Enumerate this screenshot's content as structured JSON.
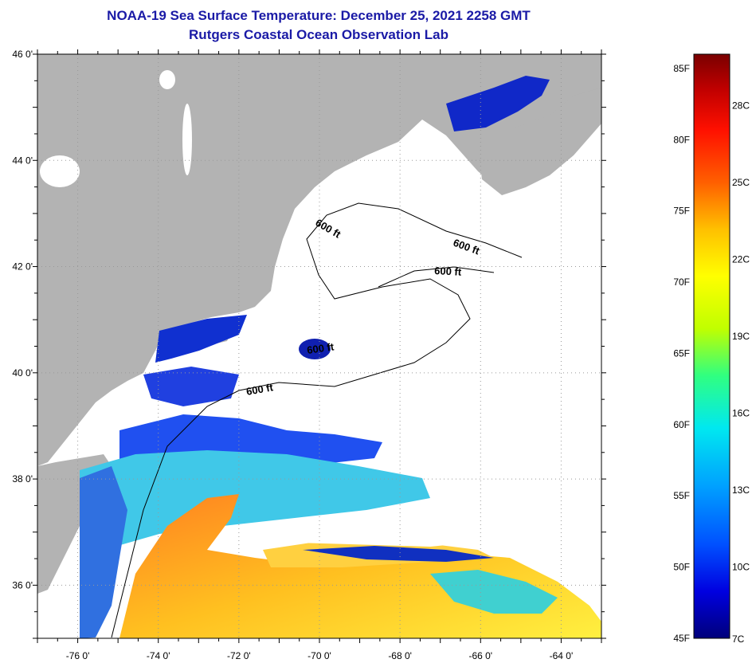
{
  "title": "NOAA-19 Sea Surface Temperature:  December 25, 2021 2258 GMT",
  "subtitle": "Rutgers Coastal Ocean Observation Lab",
  "lat_labels": [
    "46 0'",
    "44 0'",
    "42 0'",
    "40 0'",
    "38 0'",
    "36 0'"
  ],
  "lat_values": [
    46,
    44,
    42,
    40,
    38,
    36
  ],
  "lon_labels": [
    "-76 0'",
    "-74 0'",
    "-72 0'",
    "-70 0'",
    "-68 0'",
    "-66 0'",
    "-64 0'"
  ],
  "lon_values": [
    -76,
    -74,
    -72,
    -70,
    -68,
    -66,
    -64
  ],
  "lat_range": [
    35,
    46
  ],
  "lon_range": [
    -77,
    -63
  ],
  "isobath_labels": [
    "600 ft",
    "600 ft",
    "600 ft",
    "600 ft",
    "600 ft"
  ],
  "colorbar": {
    "fahrenheit_labels": [
      "85F",
      "80F",
      "75F",
      "70F",
      "65F",
      "60F",
      "55F",
      "50F",
      "45F"
    ],
    "celsius_labels": [
      "28C",
      "25C",
      "22C",
      "19C",
      "16C",
      "13C",
      "10C",
      "7C"
    ],
    "range_f": [
      45,
      86
    ],
    "colors": [
      "#00007a",
      "#0000e0",
      "#0050ff",
      "#00a0ff",
      "#00e8f0",
      "#30ff80",
      "#c0ff00",
      "#ffff00",
      "#ffc000",
      "#ff6000",
      "#ff1000",
      "#c00000",
      "#7a0000"
    ]
  },
  "colors": {
    "land": "#b3b3b3",
    "cloud": "#ffffff",
    "title": "#1a1aa6",
    "frame": "#000000"
  }
}
